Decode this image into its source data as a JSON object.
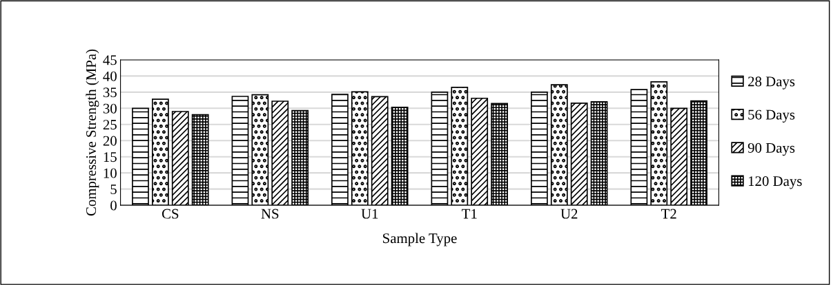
{
  "chart_data": {
    "type": "bar",
    "xlabel": "Sample Type",
    "ylabel": "Compressive Strength (MPa)",
    "categories": [
      "CS",
      "NS",
      "U1",
      "T1",
      "U2",
      "T2"
    ],
    "series": [
      {
        "name": "28 Days",
        "color": "#000000",
        "values": [
          30,
          33.7,
          34.3,
          35,
          35,
          35.8
        ]
      },
      {
        "name": "56 Days",
        "color": "#000000",
        "values": [
          32.8,
          34.2,
          35.1,
          36.5,
          37.3,
          38.2
        ]
      },
      {
        "name": "90 Days",
        "color": "#000000",
        "values": [
          29,
          32.2,
          33.6,
          33.1,
          31.6,
          30
        ]
      },
      {
        "name": "120 Days",
        "color": "#000000",
        "values": [
          28,
          29.3,
          30.3,
          31.5,
          32,
          32.3
        ]
      }
    ],
    "ylim": [
      0,
      45
    ],
    "yticks": [
      0,
      5,
      10,
      15,
      20,
      25,
      30,
      35,
      40,
      45
    ],
    "grid": "y",
    "legend": "right"
  }
}
